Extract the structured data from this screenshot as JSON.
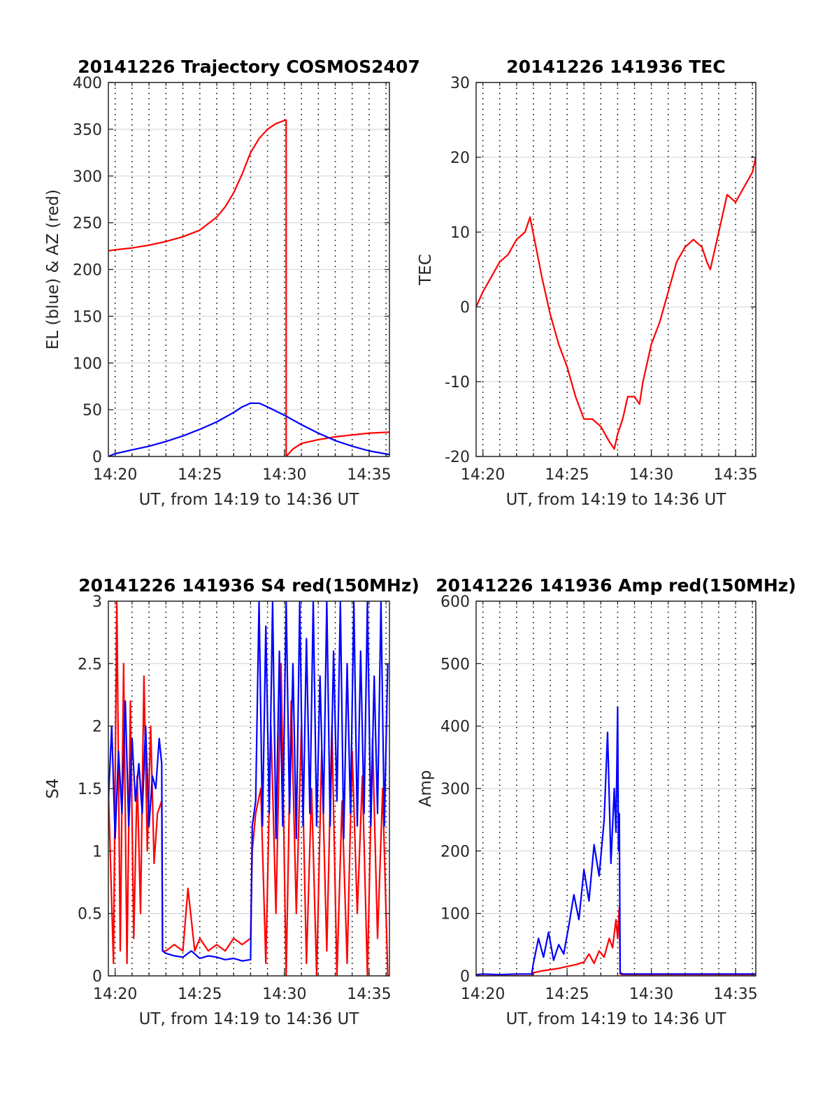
{
  "chart_data": [
    {
      "type": "line",
      "title": "20141226 Trajectory COSMOS2407",
      "xlabel": "UT, from 14:19 to 14:36 UT",
      "ylabel": "EL (blue) & AZ (red)",
      "xticks": [
        "14:20",
        "14:25",
        "14:30",
        "14:35"
      ],
      "yticks": [
        "0",
        "50",
        "100",
        "150",
        "200",
        "250",
        "300",
        "350",
        "400"
      ],
      "xlim": [
        19.6,
        36.2
      ],
      "ylim": [
        0,
        400
      ],
      "grid": true,
      "series": [
        {
          "color": "#ff0000",
          "x": [
            19.6,
            20,
            21,
            22,
            23,
            24,
            25,
            26,
            26.5,
            27,
            27.5,
            28,
            28.5,
            29,
            29.5,
            30.1,
            30.1,
            30.5,
            31,
            32,
            33,
            34,
            35,
            36.2
          ],
          "y": [
            220,
            221,
            223,
            226,
            230,
            235,
            242,
            256,
            267,
            282,
            302,
            325,
            340,
            350,
            356,
            360,
            0,
            8,
            14,
            18,
            21,
            23,
            25,
            26
          ]
        },
        {
          "color": "#0000ff",
          "x": [
            19.6,
            20,
            21,
            22,
            23,
            24,
            25,
            26,
            27,
            27.5,
            28,
            28.5,
            29,
            30,
            31,
            32,
            33,
            34,
            35,
            36.2
          ],
          "y": [
            0,
            3,
            7,
            11,
            16,
            22,
            29,
            37,
            47,
            53,
            57,
            57,
            53,
            44,
            34,
            25,
            17,
            11,
            6,
            2
          ]
        }
      ]
    },
    {
      "type": "line",
      "title": "20141226 141936 TEC",
      "xlabel": "UT, from 14:19 to 14:36 UT",
      "ylabel": "TEC",
      "xticks": [
        "14:20",
        "14:25",
        "14:30",
        "14:35"
      ],
      "yticks": [
        "-20",
        "-10",
        "0",
        "10",
        "20",
        "30"
      ],
      "xlim": [
        19.6,
        36.2
      ],
      "ylim": [
        -20,
        30
      ],
      "grid": true,
      "series": [
        {
          "color": "#ff0000",
          "x": [
            19.6,
            20,
            20.5,
            21,
            21.5,
            22,
            22.5,
            22.8,
            23.5,
            24,
            24.5,
            25,
            25.5,
            26,
            26.5,
            27,
            27.5,
            27.8,
            28,
            28.3,
            28.6,
            29,
            29.3,
            29.5,
            30,
            30.5,
            31,
            31.5,
            32,
            32.5,
            33,
            33.3,
            33.5,
            34,
            34.5,
            35,
            35.5,
            36,
            36.2
          ],
          "y": [
            0,
            2,
            4,
            6,
            7,
            9,
            10,
            12,
            4,
            -1,
            -5,
            -8,
            -12,
            -15,
            -15,
            -16,
            -18,
            -19,
            -17,
            -15,
            -12,
            -12,
            -13,
            -10,
            -5,
            -2,
            2,
            6,
            8,
            9,
            8,
            6,
            5,
            10,
            15,
            14,
            16,
            18,
            20
          ]
        }
      ]
    },
    {
      "type": "line",
      "title": "20141226 141936 S4 red(150MHz)",
      "xlabel": "UT, from 14:19 to 14:36 UT",
      "ylabel": "S4",
      "xticks": [
        "14:20",
        "14:25",
        "14:30",
        "14:35"
      ],
      "yticks": [
        "0",
        "0.5",
        "1",
        "1.5",
        "2",
        "2.5",
        "3"
      ],
      "xlim": [
        19.6,
        36.2
      ],
      "ylim": [
        0,
        3
      ],
      "grid": true,
      "series": [
        {
          "color": "#ff0000",
          "x": [
            19.6,
            19.9,
            20.1,
            20.3,
            20.5,
            20.7,
            20.9,
            21.1,
            21.3,
            21.5,
            21.7,
            21.9,
            22.1,
            22.3,
            22.5,
            22.75,
            22.8,
            23,
            23.5,
            24,
            24.3,
            24.7,
            25,
            25.5,
            26,
            26.5,
            27,
            27.5,
            28,
            28.1,
            28.3,
            28.6,
            28.9,
            29.2,
            29.5,
            29.8,
            30.1,
            30.4,
            30.7,
            31,
            31.3,
            31.6,
            31.9,
            32.2,
            32.5,
            32.8,
            33.1,
            33.4,
            33.7,
            34,
            34.3,
            34.6,
            34.9,
            35.2,
            35.5,
            35.8,
            36.1
          ],
          "y": [
            1.5,
            0.1,
            3.0,
            0.2,
            2.5,
            0.1,
            2.2,
            0.3,
            1.6,
            0.5,
            2.4,
            1.0,
            2.0,
            0.9,
            1.3,
            1.4,
            0.2,
            0.2,
            0.25,
            0.2,
            0.7,
            0.2,
            0.3,
            0.2,
            0.25,
            0.2,
            0.3,
            0.25,
            0.3,
            1.0,
            1.3,
            1.5,
            0.1,
            2.0,
            0.5,
            2.5,
            0.0,
            2.2,
            0.5,
            2.0,
            0.1,
            1.5,
            0.0,
            1.8,
            0.2,
            2.0,
            0.0,
            1.4,
            0.1,
            1.8,
            0.5,
            1.6,
            0.0,
            1.9,
            0.3,
            1.5,
            0.0
          ]
        },
        {
          "color": "#0000ff",
          "x": [
            19.6,
            19.8,
            20,
            20.2,
            20.4,
            20.6,
            20.8,
            21,
            21.2,
            21.4,
            21.6,
            21.8,
            22,
            22.2,
            22.4,
            22.6,
            22.75,
            22.8,
            23,
            23.5,
            24,
            24.5,
            25,
            25.5,
            26,
            26.5,
            27,
            27.5,
            28,
            28.1,
            28.3,
            28.5,
            28.7,
            28.9,
            29.1,
            29.3,
            29.5,
            29.7,
            29.9,
            30.1,
            30.3,
            30.5,
            30.7,
            30.9,
            31.1,
            31.3,
            31.5,
            31.7,
            31.9,
            32.1,
            32.3,
            32.5,
            32.7,
            32.9,
            33.1,
            33.3,
            33.5,
            33.7,
            33.9,
            34.1,
            34.3,
            34.5,
            34.7,
            34.9,
            35.1,
            35.3,
            35.5,
            35.7,
            35.9,
            36.1
          ],
          "y": [
            1.4,
            2.0,
            1.1,
            1.8,
            1.3,
            2.2,
            1.2,
            1.9,
            1.4,
            1.7,
            1.3,
            2.0,
            1.2,
            1.6,
            1.5,
            1.9,
            1.7,
            0.2,
            0.18,
            0.16,
            0.15,
            0.2,
            0.14,
            0.16,
            0.15,
            0.13,
            0.14,
            0.12,
            0.13,
            1.2,
            1.4,
            3.0,
            1.2,
            2.8,
            1.3,
            3.0,
            1.1,
            2.6,
            1.2,
            3.0,
            1.3,
            2.5,
            1.1,
            3.0,
            1.2,
            2.7,
            1.3,
            3.0,
            1.2,
            2.4,
            1.3,
            3.0,
            1.2,
            2.6,
            1.4,
            3.0,
            1.1,
            2.5,
            1.3,
            3.0,
            1.2,
            2.6,
            1.3,
            3.0,
            1.2,
            2.4,
            1.3,
            3.0,
            1.2,
            2.5
          ]
        }
      ]
    },
    {
      "type": "line",
      "title": "20141226 141936 Amp red(150MHz)",
      "xlabel": "UT, from 14:19 to 14:36 UT",
      "ylabel": "Amp",
      "xticks": [
        "14:20",
        "14:25",
        "14:30",
        "14:35"
      ],
      "yticks": [
        "0",
        "100",
        "200",
        "300",
        "400",
        "500",
        "600"
      ],
      "xlim": [
        19.6,
        36.2
      ],
      "ylim": [
        0,
        600
      ],
      "grid": true,
      "series": [
        {
          "color": "#ff0000",
          "x": [
            19.6,
            22.9,
            23,
            23.5,
            24,
            24.5,
            25,
            25.5,
            26,
            26.3,
            26.6,
            26.9,
            27.2,
            27.5,
            27.7,
            27.9,
            28.0,
            28.1,
            28.15,
            28.3,
            30,
            32,
            34,
            36.2
          ],
          "y": [
            0,
            0,
            5,
            8,
            10,
            12,
            15,
            18,
            22,
            35,
            20,
            40,
            30,
            60,
            45,
            90,
            60,
            110,
            3,
            2,
            2,
            2,
            2,
            2
          ]
        },
        {
          "color": "#0000ff",
          "x": [
            19.6,
            20,
            21,
            22,
            22.9,
            23,
            23.3,
            23.6,
            23.9,
            24.2,
            24.5,
            24.8,
            25.1,
            25.4,
            25.7,
            26,
            26.3,
            26.6,
            26.9,
            27.2,
            27.4,
            27.6,
            27.8,
            27.9,
            28.0,
            28.05,
            28.1,
            28.15,
            28.3,
            29,
            30,
            31,
            32,
            33,
            34,
            35,
            36.2
          ],
          "y": [
            2,
            3,
            2,
            3,
            3,
            20,
            60,
            30,
            70,
            25,
            50,
            35,
            80,
            130,
            90,
            170,
            120,
            210,
            160,
            250,
            390,
            180,
            300,
            230,
            430,
            200,
            260,
            5,
            3,
            3,
            3,
            3,
            3,
            3,
            3,
            3,
            3
          ]
        }
      ]
    }
  ]
}
